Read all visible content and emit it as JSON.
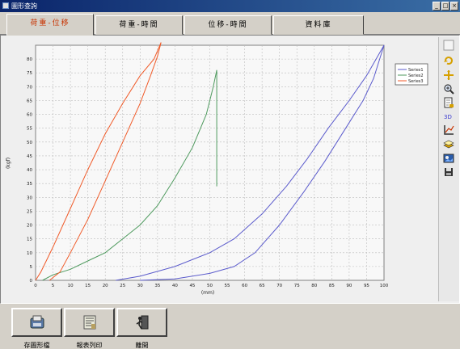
{
  "window": {
    "title": "圖形查詢",
    "min": "_",
    "max": "□",
    "close": "×"
  },
  "tabs": [
    {
      "label": "荷重-位移",
      "active": true
    },
    {
      "label": "荷重-時間",
      "active": false
    },
    {
      "label": "位移-時間",
      "active": false
    },
    {
      "label": "資料庫",
      "active": false
    }
  ],
  "toolbar_icons": [
    "blank-icon",
    "rotate-icon",
    "pan-icon",
    "zoom-icon",
    "page-icon",
    "3d-icon",
    "axis-icon",
    "layer-icon",
    "export-icon",
    "save-icon"
  ],
  "toolbar_3d_label": "3D",
  "bottom_buttons": [
    {
      "label": "存圖形檔",
      "icon": "save-graph-icon"
    },
    {
      "label": "報表列印",
      "icon": "print-report-icon"
    },
    {
      "label": "離開",
      "icon": "exit-icon"
    }
  ],
  "colors": {
    "series1": "#5b5bcc",
    "series2": "#4e9a5e",
    "series3": "#f05a28",
    "grid": "#bdbdbd",
    "active_tab": "#c83200"
  },
  "chart_data": {
    "type": "line",
    "xlabel": "(mm)",
    "ylabel": "(kgf)",
    "xlim": [
      0,
      100
    ],
    "ylim": [
      0,
      85
    ],
    "xticks": [
      0,
      5,
      10,
      15,
      20,
      25,
      30,
      35,
      40,
      45,
      50,
      55,
      60,
      65,
      70,
      75,
      80,
      85,
      90,
      95,
      100
    ],
    "yticks": [
      0,
      5,
      10,
      15,
      20,
      25,
      30,
      35,
      40,
      45,
      50,
      55,
      60,
      65,
      70,
      75,
      80
    ],
    "grid": true,
    "legend_position": "top-right",
    "series": [
      {
        "name": "Series1",
        "color": "#5b5bcc",
        "segments": [
          {
            "x": [
              23,
              30,
              40,
              50,
              57,
              65,
              72,
              78,
              84,
              90,
              95,
              100
            ],
            "y": [
              0,
              1.5,
              5,
              10,
              15,
              24,
              34,
              44,
              55,
              65,
              74,
              85
            ]
          },
          {
            "x": [
              30,
              40,
              50,
              57,
              63,
              70,
              77,
              83,
              89,
              94,
              97,
              100
            ],
            "y": [
              0,
              0.5,
              2.5,
              5,
              10,
              20,
              32,
              43,
              55,
              65,
              73,
              85
            ]
          }
        ]
      },
      {
        "name": "Series2",
        "color": "#4e9a5e",
        "segments": [
          {
            "x": [
              2,
              5,
              10,
              15,
              20,
              25,
              30,
              35,
              40,
              45,
              49,
              51,
              52
            ],
            "y": [
              0,
              2,
              4,
              7,
              10,
              15,
              20,
              27,
              37,
              48,
              60,
              70,
              76
            ]
          },
          {
            "x": [
              52,
              52
            ],
            "y": [
              76,
              34
            ]
          }
        ]
      },
      {
        "name": "Series3",
        "color": "#f05a28",
        "segments": [
          {
            "x": [
              0,
              1.5,
              5,
              10,
              15,
              20,
              25,
              30,
              34,
              36
            ],
            "y": [
              0,
              3,
              12,
              26,
              40,
              53,
              64,
              74,
              80,
              86
            ]
          },
          {
            "x": [
              4,
              7,
              10,
              15,
              20,
              25,
              30,
              33,
              35,
              36
            ],
            "y": [
              0,
              3,
              10,
              22,
              36,
              50,
              64,
              74,
              81,
              86
            ]
          }
        ]
      }
    ]
  }
}
